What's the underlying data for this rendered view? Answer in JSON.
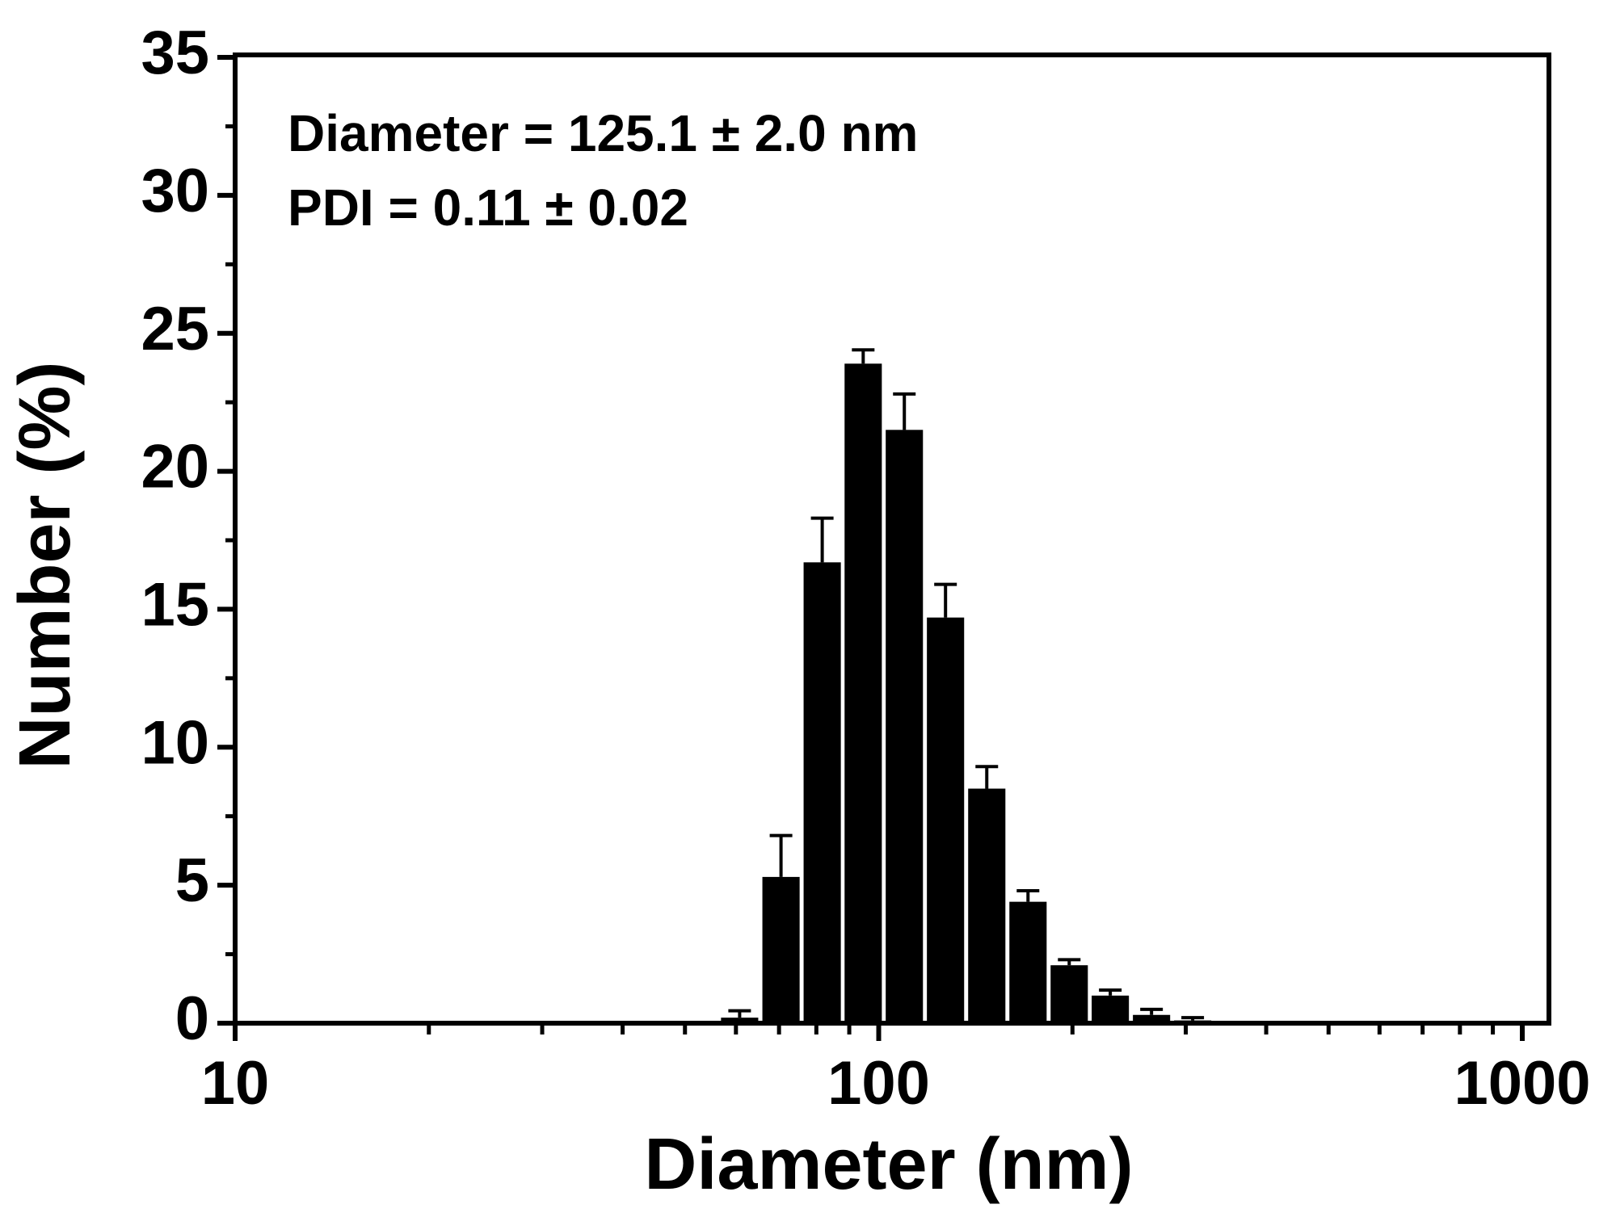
{
  "chart_data": {
    "type": "bar",
    "xlabel": "Diameter (nm)",
    "ylabel": "Number (%)",
    "annotations": [
      "Diameter =  125.1 ± 2.0 nm",
      "PDI = 0.11 ± 0.02"
    ],
    "x": [
      60.8,
      70.5,
      81.7,
      94.6,
      109.6,
      127,
      147.2,
      170.6,
      197.7,
      229,
      265.4,
      307.5
    ],
    "values": [
      0.2,
      5.3,
      16.7,
      23.9,
      21.5,
      14.7,
      8.5,
      4.4,
      2.1,
      1.0,
      0.3,
      0.1
    ],
    "errors": [
      0.25,
      1.5,
      1.6,
      0.5,
      1.3,
      1.2,
      0.8,
      0.4,
      0.2,
      0.2,
      0.2,
      0.1
    ],
    "color": "#000000",
    "xscale": "log",
    "xlim": [
      10,
      1100
    ],
    "xticks": [
      10,
      100,
      1000
    ],
    "xminorticks": [
      20,
      30,
      40,
      50,
      60,
      70,
      80,
      90,
      200,
      300,
      400,
      500,
      600,
      700,
      800,
      900
    ],
    "ylim": [
      0,
      35
    ],
    "yticks": [
      0,
      5,
      10,
      15,
      20,
      25,
      30,
      35
    ],
    "yminorticks": [
      2.5,
      7.5,
      12.5,
      17.5,
      22.5,
      27.5,
      32.5
    ]
  }
}
